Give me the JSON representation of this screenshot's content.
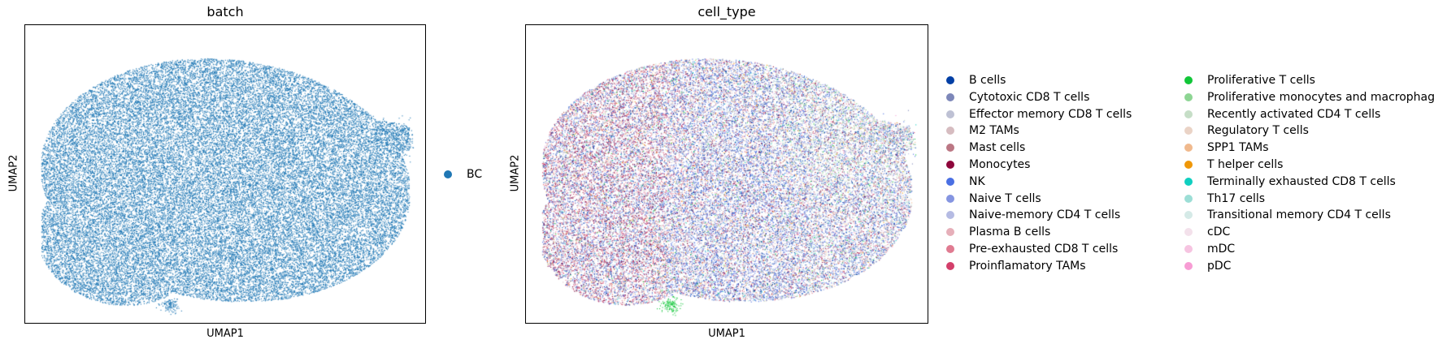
{
  "chart_data": [
    {
      "type": "scatter",
      "title": "batch",
      "xlabel": "UMAP1",
      "ylabel": "UMAP2",
      "grid": false,
      "ticks": false,
      "legend_placement": "right",
      "series": [
        {
          "name": "BC",
          "color": "#1f77b4"
        }
      ]
    },
    {
      "type": "scatter",
      "title": "cell_type",
      "xlabel": "UMAP1",
      "ylabel": "UMAP2",
      "grid": false,
      "ticks": false,
      "legend_placement": "right",
      "series": [
        {
          "name": "B cells",
          "color": "#023fa5"
        },
        {
          "name": "Cytotoxic CD8 T cells",
          "color": "#7d87b9"
        },
        {
          "name": "Effector memory CD8 T cells",
          "color": "#bec1d4"
        },
        {
          "name": "M2 TAMs",
          "color": "#d6bcc0"
        },
        {
          "name": "Mast cells",
          "color": "#bb7784"
        },
        {
          "name": "Monocytes",
          "color": "#8e063b"
        },
        {
          "name": "NK",
          "color": "#4a6fe3"
        },
        {
          "name": "Naive T cells",
          "color": "#8595e1"
        },
        {
          "name": "Naive-memory CD4 T cells",
          "color": "#b5bbe3"
        },
        {
          "name": "Plasma B cells",
          "color": "#e6afb9"
        },
        {
          "name": "Pre-exhausted CD8 T cells",
          "color": "#e07b91"
        },
        {
          "name": "Proinflamatory TAMs",
          "color": "#d33f6a"
        },
        {
          "name": "Proliferative T cells",
          "color": "#11c638"
        },
        {
          "name": "Proliferative monocytes and macrophages",
          "color": "#8dd593"
        },
        {
          "name": "Recently activated CD4 T cells",
          "color": "#c6dec7"
        },
        {
          "name": "Regulatory T cells",
          "color": "#ead3c6"
        },
        {
          "name": "SPP1 TAMs",
          "color": "#f0b98d"
        },
        {
          "name": "T helper cells",
          "color": "#ef9708"
        },
        {
          "name": "Terminally exhausted CD8 T cells",
          "color": "#0fcfc0"
        },
        {
          "name": "Th17 cells",
          "color": "#9cded6"
        },
        {
          "name": "Transitional memory CD4 T cells",
          "color": "#d5eae7"
        },
        {
          "name": "cDC",
          "color": "#f3e1eb"
        },
        {
          "name": "mDC",
          "color": "#f6c4e1"
        },
        {
          "name": "pDC",
          "color": "#f79cd4"
        }
      ]
    }
  ]
}
